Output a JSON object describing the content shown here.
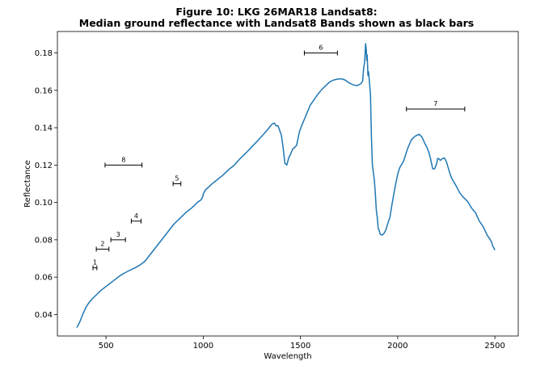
{
  "chart_data": {
    "type": "line",
    "title_line1": "Figure 10: LKG 26MAR18  Landsat8:",
    "title_line2": "Median ground reflectance with Landsat8 Bands shown as black bars",
    "xlabel": "Wavelength",
    "ylabel": "Reflectance",
    "xlim": [
      250,
      2620
    ],
    "ylim": [
      0.0285,
      0.1915
    ],
    "xticks": [
      500,
      1000,
      1500,
      2000,
      2500
    ],
    "xtick_labels": [
      "500",
      "1000",
      "1500",
      "2000",
      "2500"
    ],
    "yticks": [
      0.04,
      0.06,
      0.08,
      0.1,
      0.12,
      0.14,
      0.16,
      0.18
    ],
    "ytick_labels": [
      "0.04",
      "0.06",
      "0.08",
      "0.10",
      "0.12",
      "0.14",
      "0.16",
      "0.18"
    ],
    "grid": false,
    "line_color": "#1f77b4",
    "bar_color": "#000000",
    "series": [
      {
        "x": [
          350,
          365,
          380,
          395,
          410,
          430,
          450,
          475,
          500,
          525,
          550,
          575,
          600,
          625,
          650,
          675,
          700,
          730,
          760,
          790,
          820,
          850,
          880,
          910,
          940,
          970,
          990,
          999,
          1000,
          1010,
          1040,
          1070,
          1100,
          1130,
          1160,
          1190,
          1220,
          1250,
          1280,
          1310,
          1330,
          1345,
          1355,
          1365,
          1375,
          1385,
          1395,
          1402,
          1410,
          1420,
          1430,
          1440,
          1450,
          1460,
          1470,
          1480,
          1495,
          1510,
          1530,
          1550,
          1570,
          1590,
          1610,
          1630,
          1650,
          1670,
          1690,
          1710,
          1730,
          1750,
          1770,
          1790,
          1800,
          1810,
          1820,
          1825,
          1830,
          1835,
          1838,
          1841,
          1843,
          1845,
          1847,
          1850,
          1855,
          1860,
          1865,
          1870,
          1875,
          1880,
          1885,
          1890,
          1895,
          1900,
          1905,
          1910,
          1920,
          1930,
          1940,
          1950,
          1960,
          1970,
          1980,
          1990,
          2000,
          2010,
          2030,
          2050,
          2070,
          2090,
          2110,
          2125,
          2140,
          2150,
          2160,
          2170,
          2180,
          2190,
          2200,
          2205,
          2210,
          2215,
          2220,
          2230,
          2240,
          2250,
          2260,
          2270,
          2280,
          2300,
          2320,
          2340,
          2360,
          2380,
          2400,
          2420,
          2440,
          2460,
          2480,
          2490,
          2500
        ],
        "y": [
          0.033,
          0.036,
          0.04,
          0.0435,
          0.046,
          0.0485,
          0.0505,
          0.053,
          0.055,
          0.057,
          0.059,
          0.061,
          0.0625,
          0.0638,
          0.065,
          0.0665,
          0.0685,
          0.0725,
          0.0765,
          0.0805,
          0.0845,
          0.0885,
          0.0915,
          0.0945,
          0.097,
          0.1,
          0.1015,
          0.1035,
          0.1045,
          0.1065,
          0.1095,
          0.112,
          0.1145,
          0.1175,
          0.12,
          0.1235,
          0.1265,
          0.1298,
          0.133,
          0.1365,
          0.1388,
          0.1408,
          0.142,
          0.1425,
          0.141,
          0.141,
          0.138,
          0.136,
          0.13,
          0.121,
          0.12,
          0.124,
          0.126,
          0.1285,
          0.1295,
          0.1305,
          0.138,
          0.142,
          0.147,
          0.152,
          0.155,
          0.158,
          0.1605,
          0.1625,
          0.1645,
          0.1655,
          0.166,
          0.1662,
          0.1655,
          0.164,
          0.163,
          0.1625,
          0.163,
          0.1635,
          0.165,
          0.172,
          0.175,
          0.185,
          0.1825,
          0.176,
          0.179,
          0.174,
          0.168,
          0.17,
          0.164,
          0.158,
          0.135,
          0.12,
          0.116,
          0.112,
          0.105,
          0.096,
          0.092,
          0.086,
          0.085,
          0.083,
          0.0825,
          0.0835,
          0.0855,
          0.089,
          0.092,
          0.0985,
          0.1045,
          0.11,
          0.115,
          0.1185,
          0.122,
          0.1285,
          0.1335,
          0.1355,
          0.1365,
          0.135,
          0.1315,
          0.1295,
          0.127,
          0.123,
          0.118,
          0.118,
          0.1205,
          0.1235,
          0.1235,
          0.123,
          0.1225,
          0.1235,
          0.1238,
          0.122,
          0.1185,
          0.115,
          0.1125,
          0.109,
          0.105,
          0.1025,
          0.1005,
          0.097,
          0.0945,
          0.09,
          0.087,
          0.0825,
          0.0795,
          0.0765,
          0.0745
        ]
      }
    ],
    "bands": [
      {
        "label": "1",
        "x_start": 433,
        "x_end": 453,
        "y": 0.065
      },
      {
        "label": "2",
        "x_start": 450,
        "x_end": 515,
        "y": 0.075
      },
      {
        "label": "3",
        "x_start": 525,
        "x_end": 600,
        "y": 0.08
      },
      {
        "label": "4",
        "x_start": 630,
        "x_end": 680,
        "y": 0.09
      },
      {
        "label": "5",
        "x_start": 845,
        "x_end": 885,
        "y": 0.11
      },
      {
        "label": "6",
        "x_start": 1520,
        "x_end": 1690,
        "y": 0.18
      },
      {
        "label": "7",
        "x_start": 2045,
        "x_end": 2345,
        "y": 0.15
      },
      {
        "label": "8",
        "x_start": 495,
        "x_end": 685,
        "y": 0.12
      }
    ]
  }
}
